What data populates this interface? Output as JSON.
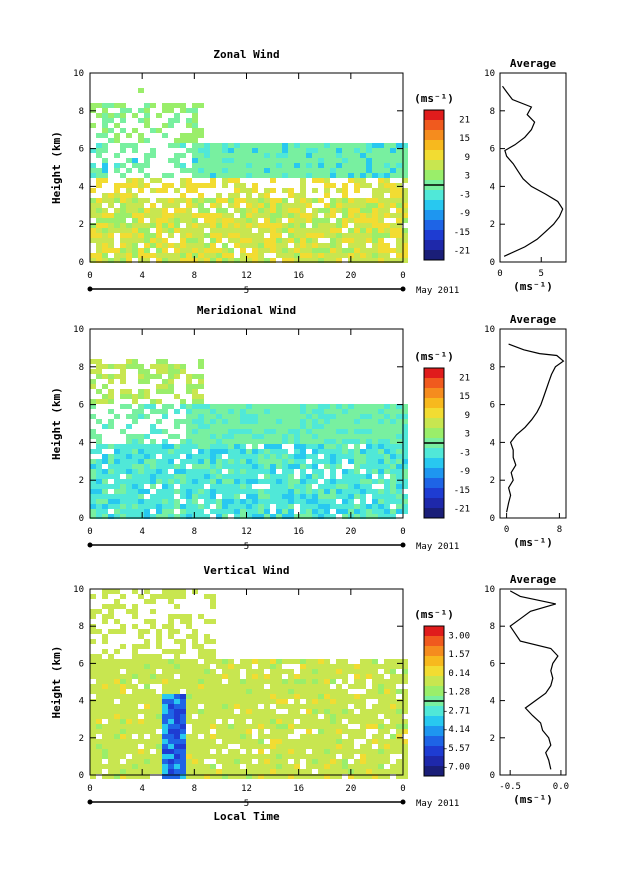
{
  "chart_data": [
    {
      "type": "heatmap",
      "title": "Zonal Wind",
      "ylabel": "Height (km)",
      "xlim": [
        0,
        24
      ],
      "ylim": [
        0,
        10
      ],
      "x_ticks": [
        "0",
        "4",
        "8",
        "12",
        "16",
        "20",
        "0"
      ],
      "y_ticks": [
        "0",
        "2",
        "4",
        "6",
        "8",
        "10"
      ],
      "date_axis": {
        "labels": [
          "5"
        ],
        "right_label": "May 2011"
      },
      "colorbar": {
        "unit": "(ms⁻¹)",
        "ticks": [
          "21",
          "15",
          "9",
          "3",
          "-3",
          "-9",
          "-15",
          "-21"
        ],
        "colors": [
          "#e01c1c",
          "#f05a1e",
          "#f58c1e",
          "#f7b91e",
          "#f2dc32",
          "#c8e650",
          "#9aee6a",
          "#78f0a0",
          "#50e8d8",
          "#28c8f0",
          "#1e96f0",
          "#1e64e6",
          "#1e3cd2",
          "#1e28aa",
          "#1a1e78"
        ]
      },
      "average_panel": {
        "title": "Average",
        "xlabel": "(ms⁻¹)",
        "x_ticks": [
          "0",
          "5"
        ],
        "xlim": [
          0,
          8
        ],
        "height_km": [
          0.3,
          0.8,
          1.2,
          1.6,
          2.0,
          2.4,
          2.8,
          3.2,
          3.6,
          4.0,
          4.4,
          4.8,
          5.2,
          5.6,
          5.9,
          6.2,
          6.6,
          7.0,
          7.4,
          7.8,
          8.2,
          8.6,
          9.0,
          9.3
        ],
        "speed": [
          0.5,
          3.0,
          4.5,
          5.5,
          6.5,
          7.2,
          7.6,
          7.0,
          5.5,
          3.8,
          2.8,
          2.2,
          1.6,
          0.8,
          0.6,
          1.8,
          3.0,
          3.8,
          4.2,
          3.3,
          3.8,
          1.5,
          0.8,
          0.3
        ]
      }
    },
    {
      "type": "heatmap",
      "title": "Meridional Wind",
      "ylabel": "Height (km)",
      "xlim": [
        0,
        24
      ],
      "ylim": [
        0,
        10
      ],
      "x_ticks": [
        "0",
        "4",
        "8",
        "12",
        "16",
        "20",
        "0"
      ],
      "y_ticks": [
        "0",
        "2",
        "4",
        "6",
        "8",
        "10"
      ],
      "date_axis": {
        "labels": [
          "5"
        ],
        "right_label": "May 2011"
      },
      "colorbar": {
        "unit": "(ms⁻¹)",
        "ticks": [
          "21",
          "15",
          "9",
          "3",
          "-3",
          "-9",
          "-15",
          "-21"
        ],
        "colors": [
          "#e01c1c",
          "#f05a1e",
          "#f58c1e",
          "#f7b91e",
          "#f2dc32",
          "#c8e650",
          "#9aee6a",
          "#78f0a0",
          "#50e8d8",
          "#28c8f0",
          "#1e96f0",
          "#1e64e6",
          "#1e3cd2",
          "#1e28aa",
          "#1a1e78"
        ]
      },
      "average_panel": {
        "title": "Average",
        "xlabel": "(ms⁻¹)",
        "x_ticks": [
          "0",
          "8"
        ],
        "xlim": [
          -1,
          9
        ],
        "height_km": [
          0.3,
          0.8,
          1.2,
          1.6,
          2.0,
          2.4,
          2.8,
          3.2,
          3.6,
          4.0,
          4.4,
          4.8,
          5.2,
          5.6,
          6.0,
          6.4,
          6.8,
          7.2,
          7.6,
          8.0,
          8.3,
          8.6,
          8.7,
          8.9,
          9.2
        ],
        "speed": [
          0.0,
          0.3,
          0.6,
          0.3,
          1.0,
          0.7,
          1.4,
          1.0,
          1.0,
          0.6,
          1.5,
          2.8,
          3.8,
          4.6,
          5.2,
          5.6,
          6.0,
          6.4,
          6.8,
          7.4,
          8.6,
          7.6,
          5.0,
          2.6,
          0.3
        ]
      }
    },
    {
      "type": "heatmap",
      "title": "Vertical Wind",
      "ylabel": "Height (km)",
      "xlabel": "Local Time",
      "xlim": [
        0,
        24
      ],
      "ylim": [
        0,
        10
      ],
      "x_ticks": [
        "0",
        "4",
        "8",
        "12",
        "16",
        "20",
        "0"
      ],
      "y_ticks": [
        "0",
        "2",
        "4",
        "6",
        "8",
        "10"
      ],
      "date_axis": {
        "labels": [
          "5"
        ],
        "right_label": "May 2011"
      },
      "colorbar": {
        "unit": "(ms⁻¹)",
        "ticks": [
          "3.00",
          "1.57",
          "0.14",
          "-1.28",
          "-2.71",
          "-4.14",
          "-5.57",
          "-7.00"
        ],
        "colors": [
          "#e01c1c",
          "#f05a1e",
          "#f58c1e",
          "#f7b91e",
          "#f2dc32",
          "#c8e650",
          "#9aee6a",
          "#78f0a0",
          "#50e8d8",
          "#28c8f0",
          "#1e96f0",
          "#1e64e6",
          "#1e3cd2",
          "#1e28aa",
          "#1a1e78"
        ]
      },
      "average_panel": {
        "title": "Average",
        "xlabel": "(ms⁻¹)",
        "x_ticks": [
          "-0.5",
          "0.0"
        ],
        "xlim": [
          -0.6,
          0.05
        ],
        "height_km": [
          0.3,
          0.8,
          1.2,
          1.6,
          2.0,
          2.4,
          2.8,
          3.2,
          3.6,
          4.0,
          4.4,
          4.8,
          5.2,
          5.6,
          6.0,
          6.4,
          6.8,
          7.2,
          7.6,
          8.0,
          8.4,
          8.8,
          9.2,
          9.6,
          9.9
        ],
        "speed": [
          -0.1,
          -0.12,
          -0.15,
          -0.1,
          -0.12,
          -0.18,
          -0.2,
          -0.28,
          -0.35,
          -0.25,
          -0.15,
          -0.1,
          -0.08,
          -0.1,
          -0.08,
          -0.03,
          -0.1,
          -0.4,
          -0.45,
          -0.5,
          -0.4,
          -0.3,
          -0.05,
          -0.4,
          -0.5
        ]
      }
    }
  ]
}
